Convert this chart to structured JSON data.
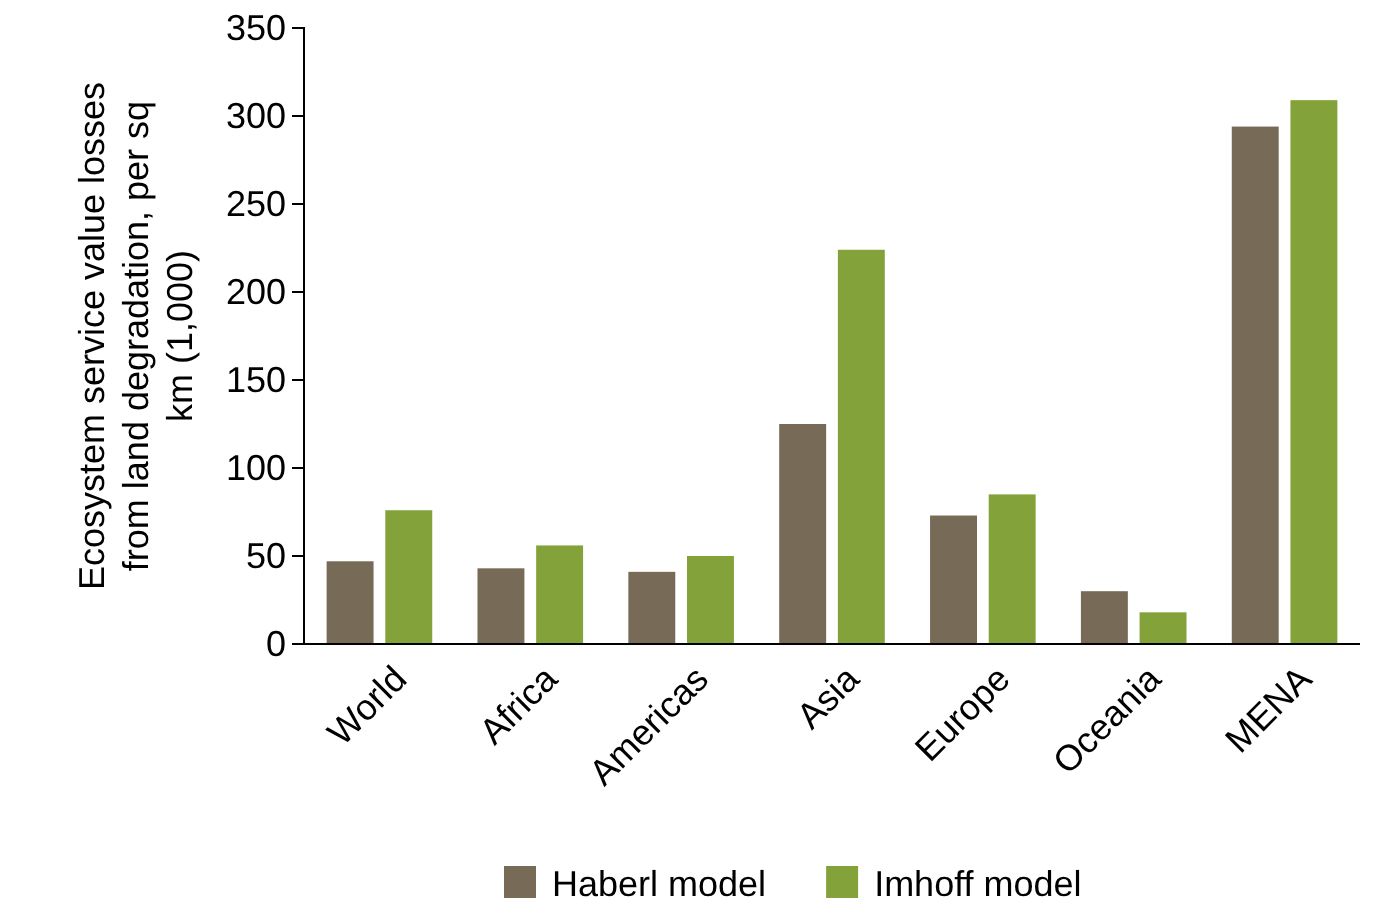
{
  "chart_data": {
    "type": "bar",
    "ylabel": "Ecosystem service value losses from land degradation, per sq km (1,000)",
    "categories": [
      "World",
      "Africa",
      "Americas",
      "Asia",
      "Europe",
      "Oceania",
      "MENA"
    ],
    "series": [
      {
        "name": "Haberl model",
        "color": "#776b58",
        "values": [
          47,
          43,
          41,
          125,
          73,
          30,
          294
        ]
      },
      {
        "name": "Imhoff model",
        "color": "#83a33a",
        "values": [
          76,
          56,
          50,
          224,
          85,
          18,
          309
        ]
      }
    ],
    "ylim": [
      0,
      350
    ],
    "yticks": [
      0,
      50,
      100,
      150,
      200,
      250,
      300,
      350
    ],
    "grid": false,
    "legend": "bottom"
  }
}
